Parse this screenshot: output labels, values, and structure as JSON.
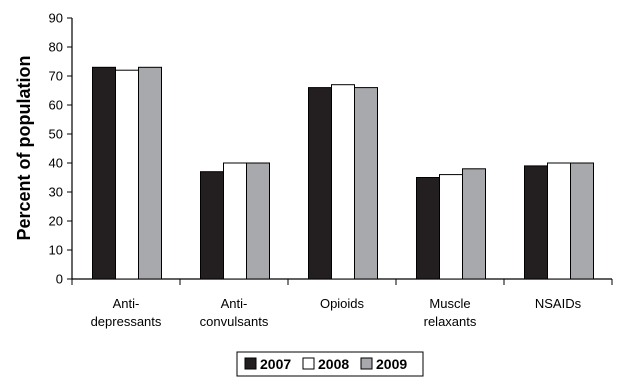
{
  "chart_data": {
    "type": "bar",
    "title": "",
    "xlabel": "",
    "ylabel": "Percent of population",
    "ylim": [
      0,
      90
    ],
    "yticks": [
      "0",
      "10",
      "20",
      "30",
      "40",
      "50",
      "60",
      "70",
      "80",
      "90"
    ],
    "categories": [
      [
        "Anti-",
        "depressants"
      ],
      [
        "Anti-",
        "convulsants"
      ],
      [
        "Opioids"
      ],
      [
        "Muscle",
        "relaxants"
      ],
      [
        "NSAIDs"
      ]
    ],
    "series": [
      {
        "name": "2007",
        "color": "#231f20",
        "values": [
          73,
          37,
          66,
          35,
          39
        ]
      },
      {
        "name": "2008",
        "color": "#ffffff",
        "values": [
          72,
          40,
          67,
          36,
          40
        ]
      },
      {
        "name": "2009",
        "color": "#a7a9ac",
        "values": [
          73,
          40,
          66,
          38,
          40
        ]
      }
    ],
    "grid": false,
    "legend_position": "bottom-center"
  }
}
